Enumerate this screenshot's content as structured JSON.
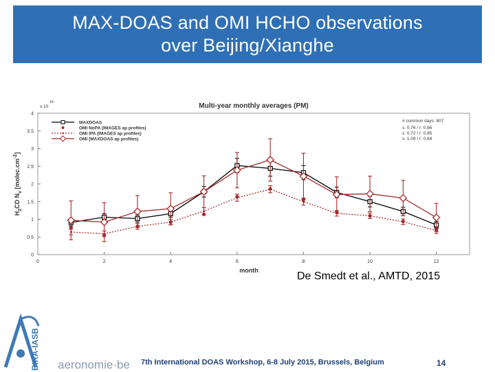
{
  "slide": {
    "title_line1": "MAX-DOAS and OMI HCHO observations",
    "title_line2": "over Beijing/Xianghe",
    "citation": "De Smedt et al., AMTD, 2015",
    "footer": "7th International DOAS Workshop, 6-8 July 2015, Brussels, Belgium",
    "page_number": "14",
    "logo_text": "aeronomie·be",
    "logo_vertical_text": "BIRA-IASB",
    "colors": {
      "title_bg": "#2f6fb5",
      "maxdoas": "#000000",
      "omi": "#a52a2a"
    }
  },
  "chart_data": {
    "type": "line",
    "title": "Multi-year monthly averages (PM)",
    "xlabel": "month",
    "ylabel": "H2CD Nv [molec.cm-2]",
    "ylabel_parts": {
      "main": "H",
      "sub1": "2",
      "mid": "CD N",
      "sub2": "v",
      "units": " [molec.cm",
      "sup": "-2",
      "close": "]"
    },
    "y_multiplier": {
      "base": "x 10",
      "exp": "16"
    },
    "xlim": [
      0,
      13
    ],
    "ylim": [
      0,
      4
    ],
    "xticks": [
      "0",
      "2",
      "4",
      "6",
      "8",
      "10",
      "12"
    ],
    "yticks": [
      "0",
      "0.5",
      "1",
      "1.5",
      "2",
      "2.5",
      "3",
      "3.5",
      "4"
    ],
    "x": [
      1,
      2,
      3,
      4,
      5,
      6,
      7,
      8,
      9,
      10,
      11,
      12
    ],
    "series": [
      {
        "name": "MAXDOAS",
        "color": "#000000",
        "marker": "square",
        "dash": "solid",
        "values": [
          0.91,
          1.06,
          1.02,
          1.16,
          1.78,
          2.52,
          2.44,
          2.32,
          1.76,
          1.5,
          1.22,
          0.84
        ],
        "err": [
          0.1,
          0.1,
          0.1,
          0.1,
          0.15,
          0.2,
          0.22,
          0.2,
          0.15,
          0.15,
          0.12,
          0.1
        ]
      },
      {
        "name": "OMI NoPA (IMAGES ap profiles)",
        "color": "#a52a2a",
        "marker": "dot",
        "dash": "none",
        "values": [
          0.76,
          0.56,
          0.8,
          0.92,
          1.14,
          1.64,
          1.86,
          1.56,
          1.2,
          1.1,
          0.94,
          0.7
        ],
        "err": [
          0,
          0,
          0,
          0,
          0,
          0,
          0,
          0,
          0,
          0,
          0,
          0
        ]
      },
      {
        "name": "OMI IPA (IMAGES ap profiles)",
        "color": "#a52a2a",
        "marker": "smalldot",
        "dash": "dotted",
        "values": [
          0.64,
          0.59,
          0.8,
          0.92,
          1.23,
          1.61,
          1.85,
          1.5,
          1.17,
          1.1,
          0.93,
          0.68
        ],
        "err": [
          0.08,
          0.08,
          0.08,
          0.08,
          0.1,
          0.1,
          0.1,
          0.1,
          0.08,
          0.08,
          0.08,
          0.08
        ]
      },
      {
        "name": "OMI (MAXDOAS ap profiles)",
        "color": "#a52a2a",
        "marker": "diamond",
        "dash": "solid",
        "values": [
          0.97,
          0.92,
          1.22,
          1.3,
          1.78,
          2.39,
          2.68,
          2.22,
          1.7,
          1.72,
          1.6,
          1.05
        ],
        "err": [
          0.55,
          0.55,
          0.45,
          0.45,
          0.45,
          0.5,
          0.6,
          0.65,
          0.5,
          0.5,
          0.5,
          0.4
        ]
      }
    ],
    "stats": {
      "header": "# common days: 807",
      "lines": [
        "s: 0.76 / r: 0.86",
        "s: 0.72 / r: 0.85",
        "s: 1.09 / r: 0.84"
      ]
    },
    "legend_position": "top-left",
    "grid": false
  }
}
